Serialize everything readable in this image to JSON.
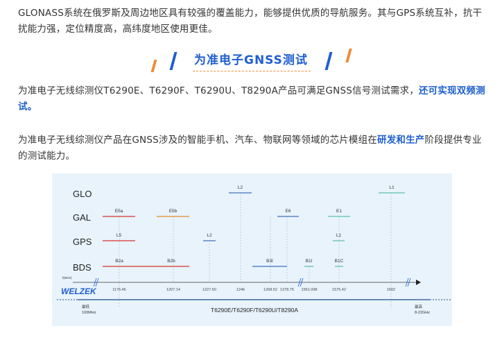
{
  "paragraphs": {
    "p1": "GLONASS系统在俄罗斯及周边地区具有较强的覆盖能力，能够提供优质的导航服务。其与GPS系统互补，抗干扰能力强，定位精度高，高纬度地区使用更佳。",
    "p2_text": "为准电子无线综测仪T6290E、T6290F、T6290U、T8290A产品可满足GNSS信号测试需求，",
    "p2_highlight": "还可实现双频测试。",
    "p3_text": "为准电子无线综测仪产品在GNSS涉及的智能手机、汽车、物联网等领域的芯片模组在",
    "p3_highlight": "研发和生产",
    "p3_tail": "阶段提供专业的测试能力。"
  },
  "heading": "为准电子GNSS测试",
  "colors": {
    "accent_blue": "#1f5fcf",
    "accent_orange": "#f08a3a",
    "red": "#d9534f",
    "orange": "#e89a4c",
    "blue": "#5a86c5",
    "teal": "#5cc0a8"
  },
  "chart_data": {
    "type": "diagram",
    "systems": [
      "GLO",
      "GAL",
      "GPS",
      "BDS"
    ],
    "axis_label": "f(MHz)",
    "ticks": [
      "1176.45",
      "1207.14",
      "1227.60",
      "1246",
      "1268.52",
      "1278.75",
      "1561.098",
      "1575.42",
      "1602"
    ],
    "bands": [
      {
        "system": "GLO",
        "label": "L2",
        "color": "blue"
      },
      {
        "system": "GLO",
        "label": "L1",
        "color": "teal"
      },
      {
        "system": "GAL",
        "label": "E5a",
        "color": "red"
      },
      {
        "system": "GAL",
        "label": "E5b",
        "color": "orange"
      },
      {
        "system": "GAL",
        "label": "E6",
        "color": "blue"
      },
      {
        "system": "GAL",
        "label": "E1",
        "color": "teal"
      },
      {
        "system": "GPS",
        "label": "L5",
        "color": "red"
      },
      {
        "system": "GPS",
        "label": "L2",
        "color": "blue"
      },
      {
        "system": "GPS",
        "label": "L1",
        "color": "teal"
      },
      {
        "system": "BDS",
        "label": "B2a",
        "color": "red"
      },
      {
        "system": "BDS",
        "label": "B2b",
        "color": ""
      },
      {
        "system": "BDS",
        "label": "B3I",
        "color": "blue"
      },
      {
        "system": "BDS",
        "label": "B1I",
        "color": "teal"
      },
      {
        "system": "BDS",
        "label": "B1C",
        "color": "teal"
      }
    ],
    "logo": "WELZEK",
    "low_label": "最低",
    "low_value": "100MHz",
    "high_label": "最高",
    "high_value": "8-22GHz",
    "products": "T6290E/T6290F/T6290U/T8290A"
  }
}
